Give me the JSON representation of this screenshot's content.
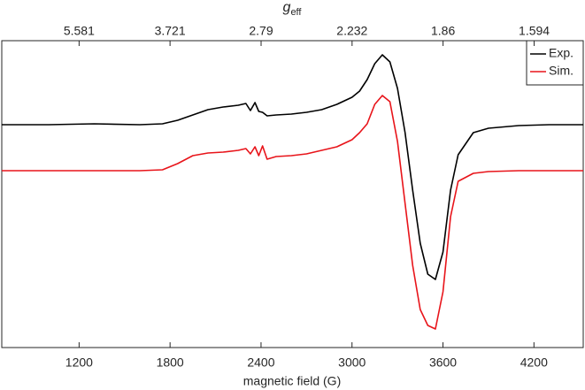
{
  "chart_data": {
    "type": "line",
    "xlabel": "magnetic field (G)",
    "x2label": {
      "main": "g",
      "sub": "eff"
    },
    "x": [
      690,
      1000,
      1300,
      1600,
      1750,
      1850,
      1950,
      2050,
      2150,
      2250,
      2300,
      2330,
      2360,
      2385,
      2410,
      2440,
      2500,
      2600,
      2700,
      2800,
      2900,
      3000,
      3050,
      3100,
      3150,
      3200,
      3250,
      3300,
      3350,
      3400,
      3450,
      3500,
      3550,
      3600,
      3650,
      3700,
      3800,
      3900,
      4100,
      4300,
      4525
    ],
    "series": [
      {
        "name": "Exp.",
        "color": "#000000",
        "values": [
          252,
          252,
          253,
          252,
          253,
          257,
          263,
          269,
          272,
          274,
          276,
          268,
          277,
          267,
          266,
          262,
          263,
          264,
          266,
          269,
          275,
          283,
          290,
          303,
          321,
          331,
          323,
          293,
          243,
          178,
          118,
          83,
          77,
          108,
          178,
          218,
          243,
          248,
          251,
          252,
          252
        ]
      },
      {
        "name": "Sim.",
        "color": "#e8141a",
        "values": [
          200,
          200,
          200,
          200,
          201,
          208,
          217,
          220,
          221,
          223,
          225,
          219,
          227,
          217,
          228,
          213,
          216,
          217,
          219,
          223,
          227,
          235,
          243,
          253,
          275,
          285,
          278,
          233,
          163,
          93,
          43,
          25,
          21,
          63,
          148,
          188,
          197,
          199,
          200,
          200,
          200
        ]
      }
    ],
    "xlim": [
      690,
      4525
    ],
    "xticks": [
      1200,
      1800,
      2400,
      3000,
      3600,
      4200
    ],
    "x2scale": "reciprocal",
    "x2lim": [
      9.706,
      1.48
    ],
    "x2ticks": [
      5.581,
      3.721,
      2.79,
      2.232,
      1.86,
      1.594
    ],
    "ylim": [
      0,
      347
    ],
    "legend": "top-right"
  }
}
